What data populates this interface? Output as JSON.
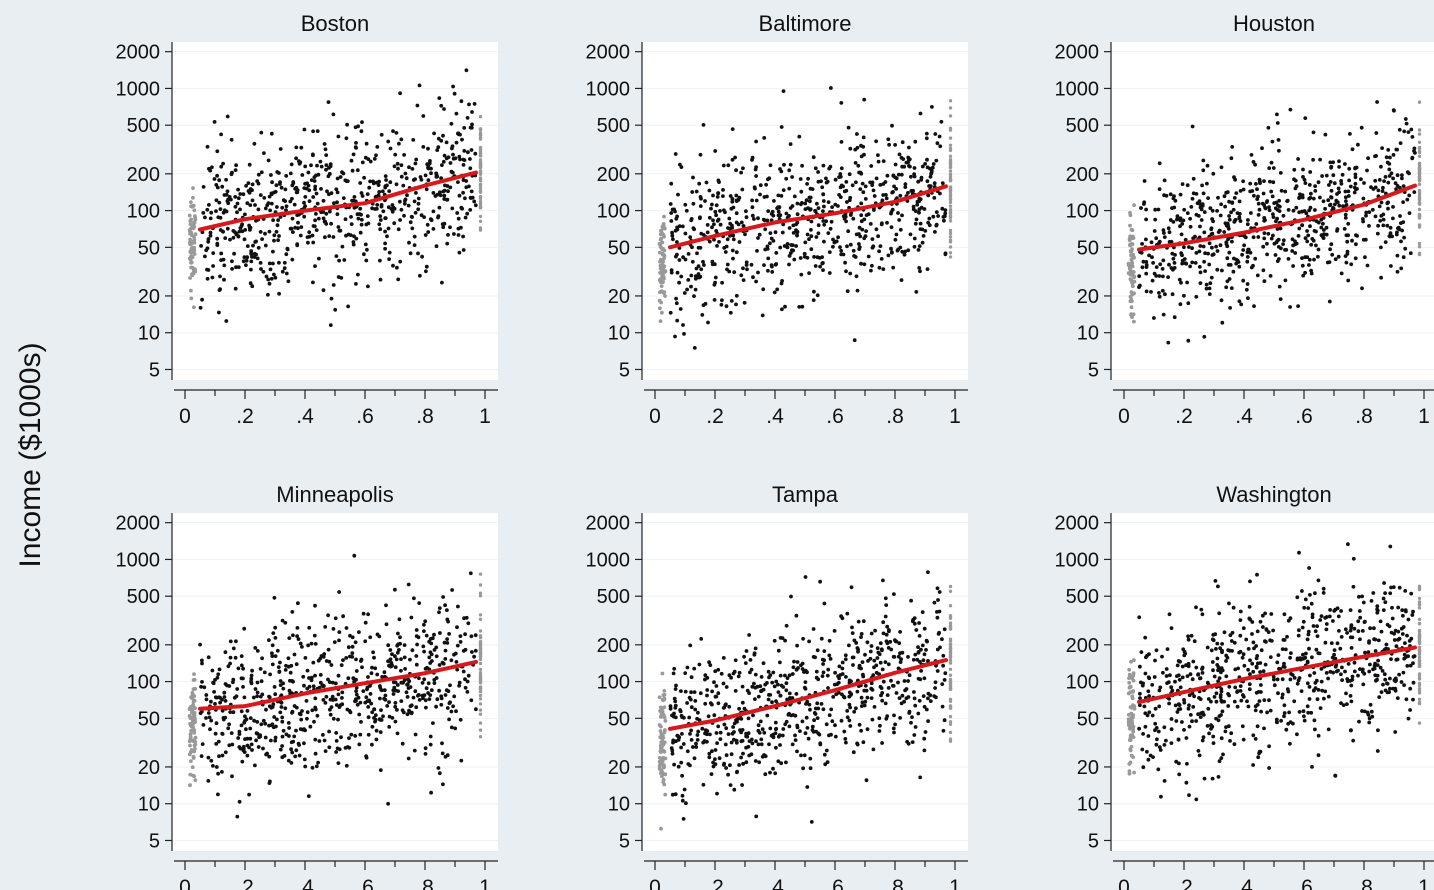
{
  "chart_data": {
    "type": "scatter",
    "ylabel": "Income ($1000s)",
    "y_scale": "log",
    "y_ticks": [
      5,
      10,
      20,
      50,
      100,
      200,
      500,
      1000,
      2000
    ],
    "y_tick_labels": [
      "5",
      "10",
      "20",
      "50",
      "100",
      "200",
      "500",
      "1000",
      "2000"
    ],
    "x_ticks": [
      0,
      0.2,
      0.4,
      0.6,
      0.8,
      1
    ],
    "x_tick_labels": [
      "0",
      ".2",
      ".4",
      ".6",
      ".8",
      "1"
    ],
    "xlim": [
      0,
      1
    ],
    "ylim": [
      5,
      2000
    ],
    "grid": true,
    "colors": {
      "points": "#111111",
      "edge_points": "#999999",
      "fit_line": "#d7191c",
      "panel_background": "#ffffff",
      "figure_background": "#e9eef2"
    },
    "panels": [
      {
        "title": "Boston",
        "fit_line": {
          "x": [
            0.05,
            0.2,
            0.4,
            0.6,
            0.8,
            0.97
          ],
          "y": [
            70,
            85,
            100,
            115,
            160,
            205
          ]
        }
      },
      {
        "title": "Baltimore",
        "fit_line": {
          "x": [
            0.05,
            0.2,
            0.4,
            0.6,
            0.8,
            0.97
          ],
          "y": [
            50,
            62,
            80,
            95,
            118,
            158
          ]
        }
      },
      {
        "title": "Houston",
        "fit_line": {
          "x": [
            0.05,
            0.2,
            0.4,
            0.6,
            0.8,
            0.97
          ],
          "y": [
            48,
            54,
            66,
            84,
            112,
            160
          ]
        }
      },
      {
        "title": "Minneapolis",
        "fit_line": {
          "x": [
            0.05,
            0.2,
            0.4,
            0.6,
            0.8,
            0.97
          ],
          "y": [
            60,
            63,
            80,
            97,
            117,
            145
          ]
        }
      },
      {
        "title": "Tampa",
        "fit_line": {
          "x": [
            0.05,
            0.2,
            0.4,
            0.6,
            0.8,
            0.97
          ],
          "y": [
            41,
            48,
            63,
            85,
            118,
            150
          ]
        }
      },
      {
        "title": "Washington",
        "fit_line": {
          "x": [
            0.05,
            0.2,
            0.4,
            0.6,
            0.8,
            0.97
          ],
          "y": [
            68,
            82,
            105,
            130,
            160,
            190
          ]
        }
      }
    ]
  }
}
